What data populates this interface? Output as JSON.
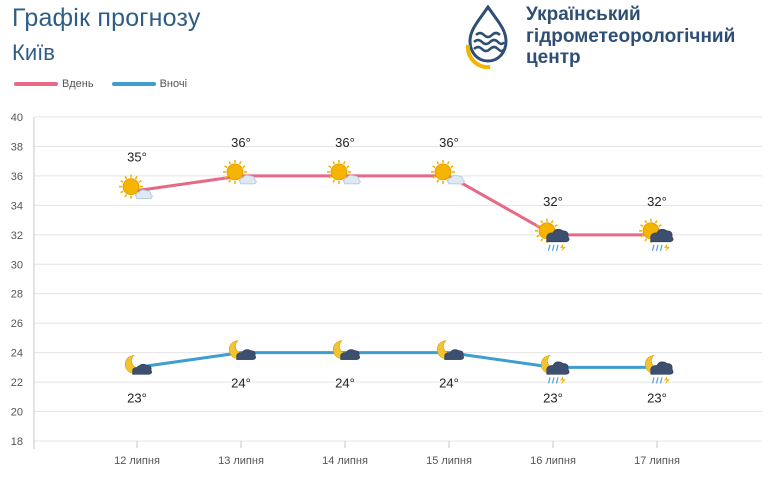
{
  "header": {
    "title": "Графік прогнозу",
    "city": "Київ"
  },
  "organization": {
    "line1": "Український",
    "line2": "гідрометеорологічний",
    "line3": "центр",
    "logo_icon": "hydromet-drop-logo-icon"
  },
  "colors": {
    "day": "#e66a86",
    "night": "#3e9ecf",
    "grid": "#e4e4e4",
    "axis_text": "#555555",
    "title": "#2f5d86",
    "sun": "#f4b400"
  },
  "chart_data": {
    "type": "line",
    "categories": [
      "12 липня",
      "13 липня",
      "14 липня",
      "15 липня",
      "16 липня",
      "17 липня"
    ],
    "ylim": [
      18,
      40
    ],
    "yticks": [
      18,
      20,
      22,
      24,
      26,
      28,
      30,
      32,
      34,
      36,
      38,
      40
    ],
    "grid": true,
    "legend_position": "top-left",
    "series": [
      {
        "name": "Вдень",
        "color": "#e66a86",
        "values": [
          35,
          36,
          36,
          36,
          32,
          32
        ],
        "labels": [
          "35°",
          "36°",
          "36°",
          "36°",
          "32°",
          "32°"
        ],
        "icons": [
          "sun-partly-cloudy-icon",
          "sun-partly-cloudy-icon",
          "sun-partly-cloudy-icon",
          "sun-partly-cloudy-icon",
          "sun-cloud-rain-thunder-icon",
          "sun-cloud-rain-thunder-icon"
        ]
      },
      {
        "name": "Вночі",
        "color": "#3e9ecf",
        "values": [
          23,
          24,
          24,
          24,
          23,
          23
        ],
        "labels": [
          "23°",
          "24°",
          "24°",
          "24°",
          "23°",
          "23°"
        ],
        "icons": [
          "moon-cloud-icon",
          "moon-cloud-icon",
          "moon-cloud-icon",
          "moon-cloud-icon",
          "moon-cloud-rain-thunder-icon",
          "moon-cloud-rain-thunder-icon"
        ]
      }
    ]
  }
}
